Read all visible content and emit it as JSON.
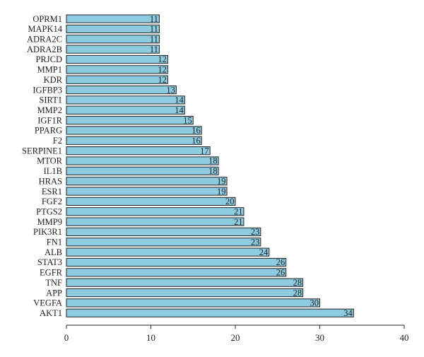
{
  "chart_data": {
    "type": "bar",
    "orientation": "horizontal",
    "title": "",
    "xlabel": "",
    "ylabel": "",
    "xlim": [
      0,
      40
    ],
    "xticks": [
      0,
      10,
      20,
      30,
      40
    ],
    "grid": false,
    "bar_color": "#8ccbe0",
    "bar_edge_color": "#222222",
    "categories": [
      "OPRM1",
      "MAPK14",
      "ADRA2C",
      "ADRA2B",
      "PRJCD",
      "MMP1",
      "KDR",
      "IGFBP3",
      "SIRT1",
      "MMP2",
      "IGF1R",
      "PPARG",
      "F2",
      "SERPINE1",
      "MTOR",
      "IL1B",
      "HRAS",
      "ESR1",
      "FGF2",
      "PTGS2",
      "MMP9",
      "PIK3R1",
      "FN1",
      "ALB",
      "STAT3",
      "EGFR",
      "TNF",
      "APP",
      "VEGFA",
      "AKT1"
    ],
    "values": [
      11,
      11,
      11,
      11,
      12,
      12,
      12,
      13,
      14,
      14,
      15,
      16,
      16,
      17,
      18,
      18,
      19,
      19,
      20,
      21,
      21,
      23,
      23,
      24,
      26,
      26,
      28,
      28,
      30,
      34
    ]
  }
}
